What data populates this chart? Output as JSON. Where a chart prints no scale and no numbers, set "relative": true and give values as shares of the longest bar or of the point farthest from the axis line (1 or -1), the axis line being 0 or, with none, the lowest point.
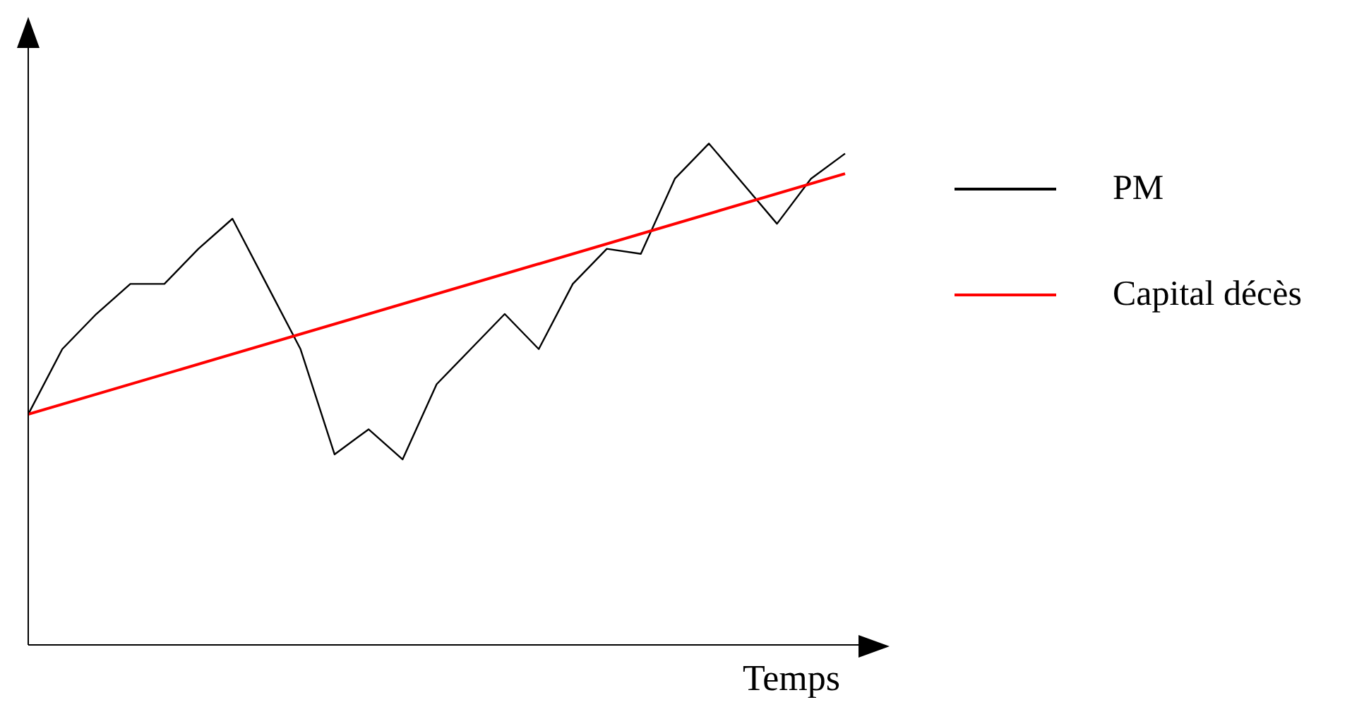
{
  "chart_data": {
    "type": "line",
    "relative": true,
    "xlabel": "Temps",
    "legend": "right",
    "grid": false,
    "marker": "none",
    "line_style": "solid",
    "categories": [
      null,
      null,
      null,
      null,
      null,
      null,
      null,
      null,
      null,
      null,
      null,
      null,
      null,
      null,
      null,
      null,
      null,
      null,
      null,
      null,
      null,
      null,
      null,
      null,
      null
    ],
    "series": [
      {
        "name": "PM",
        "color": "#000000",
        "values": [
          0.46,
          0.59,
          0.66,
          0.72,
          0.72,
          0.79,
          0.85,
          0.72,
          0.59,
          0.38,
          0.43,
          0.37,
          0.52,
          0.59,
          0.66,
          0.59,
          0.72,
          0.79,
          0.78,
          0.93,
          1,
          0.92,
          0.84,
          0.93,
          0.98
        ]
      },
      {
        "name": "Capital décès",
        "color": "#ff0000",
        "values": [
          0.46,
          null,
          null,
          null,
          null,
          null,
          null,
          null,
          null,
          null,
          null,
          null,
          null,
          null,
          null,
          null,
          null,
          null,
          null,
          null,
          null,
          null,
          null,
          null,
          0.94
        ]
      }
    ]
  }
}
